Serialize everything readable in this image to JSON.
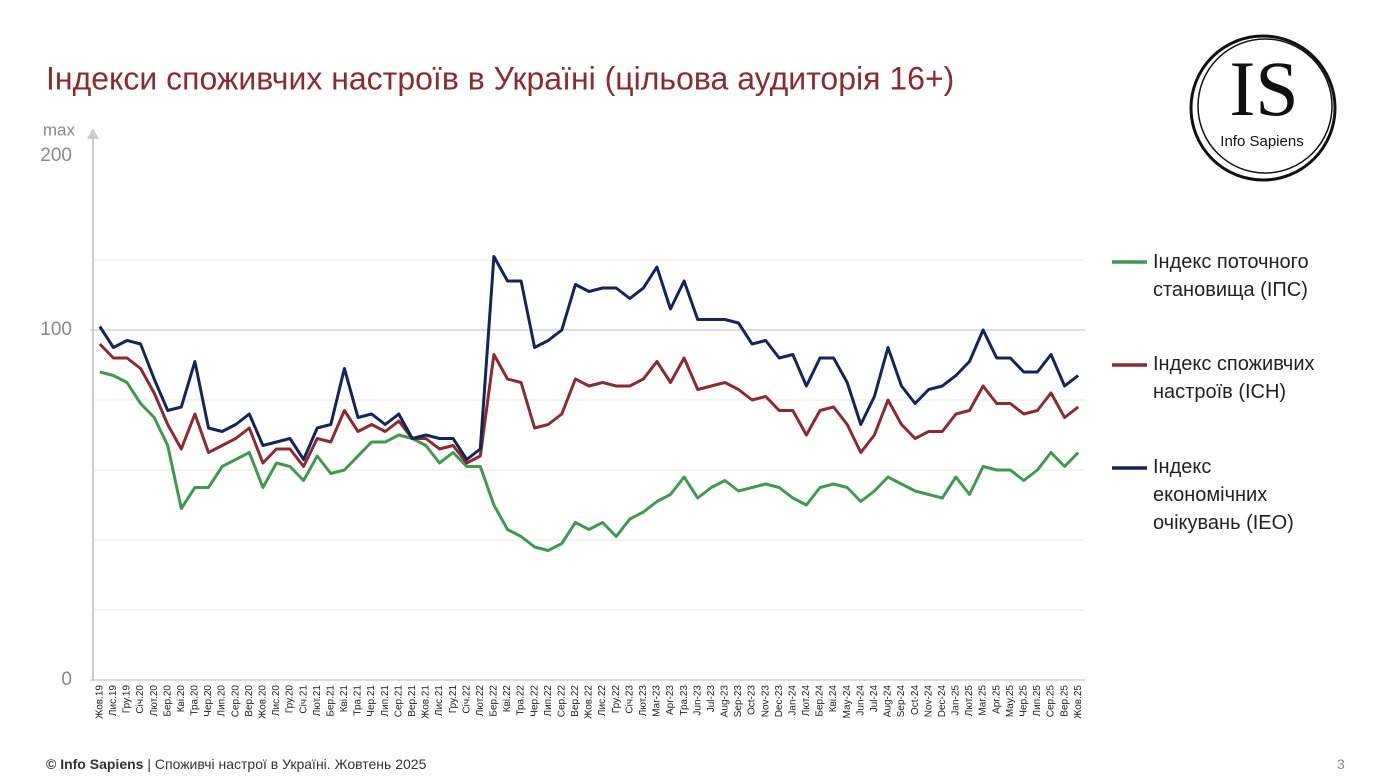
{
  "chart_data": {
    "type": "line",
    "title": "Індекси споживчих настроїв в Україні (цільова аудиторія 16+)",
    "y_axis_top_labels": [
      "max",
      "200"
    ],
    "categories": [
      "Жов.19",
      "Лис.19",
      "Гру.19",
      "Січ.20",
      "Лют.20",
      "Бер.20",
      "Кві.20",
      "Тра.20",
      "Чер.20",
      "Лип.20",
      "Сер.20",
      "Вер.20",
      "Жов.20",
      "Лис.20",
      "Гру.20",
      "Січ.21",
      "Лют.21",
      "Бер.21",
      "Кві.21",
      "Тра.21",
      "Чер.21",
      "Лип.21",
      "Сер.21",
      "Вер.21",
      "Жов.21",
      "Лис.21",
      "Гру.21",
      "Січ.22",
      "Лют.22",
      "Бер.22",
      "Кві.22",
      "Тра.22",
      "Чер.22",
      "Лип.22",
      "Сер.22",
      "Вер.22",
      "Жов.22",
      "Лис.22",
      "Гру.22",
      "Січ.23",
      "Лют.23",
      "Mar-23",
      "Apr-23",
      "Тра.23",
      "Jun-23",
      "Jul-23",
      "Aug-23",
      "Sep-23",
      "Oct-23",
      "Nov-23",
      "Dec-23",
      "Jan-24",
      "Лют.24",
      "Бер.24",
      "Кві.24",
      "May-24",
      "Jun-24",
      "Jul-24",
      "Aug-24",
      "Sep-24",
      "Oct-24",
      "Nov-24",
      "Dec-24",
      "Jan-25",
      "Лют.25",
      "Mar.25",
      "Apr.25",
      "May.25",
      "Чер.25",
      "Лип.25",
      "Сер.25",
      "Вер.25",
      "Жов.25"
    ],
    "series": [
      {
        "name": "Індекс поточного становища (ІПС)",
        "color": "#3f9a4f",
        "values": [
          88,
          87,
          85,
          79,
          75,
          67,
          49,
          55,
          55,
          61,
          63,
          65,
          55,
          62,
          61,
          57,
          64,
          59,
          60,
          64,
          68,
          68,
          70,
          69,
          67,
          62,
          65,
          61,
          61,
          50,
          43,
          41,
          38,
          37,
          39,
          45,
          43,
          45,
          41,
          46,
          48,
          51,
          53,
          58,
          52,
          55,
          57,
          54,
          55,
          56,
          55,
          52,
          50,
          55,
          56,
          55,
          51,
          54,
          58,
          56,
          54,
          53,
          52,
          58,
          53,
          61,
          60,
          60,
          57,
          60,
          65,
          61,
          65
        ]
      },
      {
        "name": "Індекс споживчих настроїв (ІСН)",
        "color": "#8b2a2f",
        "values": [
          96,
          92,
          92,
          89,
          82,
          73,
          66,
          76,
          65,
          67,
          69,
          72,
          62,
          66,
          66,
          61,
          69,
          68,
          77,
          71,
          73,
          71,
          74,
          69,
          69,
          66,
          67,
          62,
          64,
          93,
          86,
          85,
          72,
          73,
          76,
          86,
          84,
          85,
          84,
          84,
          86,
          91,
          85,
          92,
          83,
          84,
          85,
          83,
          80,
          81,
          77,
          77,
          70,
          77,
          78,
          73,
          65,
          70,
          80,
          73,
          69,
          71,
          71,
          76,
          77,
          84,
          79,
          79,
          76,
          77,
          82,
          75,
          78
        ]
      },
      {
        "name": "Індекс економічних очікувань (ІЕО)",
        "color": "#12265c",
        "values": [
          101,
          95,
          97,
          96,
          86,
          77,
          78,
          91,
          72,
          71,
          73,
          76,
          67,
          68,
          69,
          63,
          72,
          73,
          89,
          75,
          76,
          73,
          76,
          69,
          70,
          69,
          69,
          63,
          66,
          121,
          114,
          114,
          95,
          97,
          100,
          113,
          111,
          112,
          112,
          109,
          112,
          118,
          106,
          114,
          103,
          103,
          103,
          102,
          96,
          97,
          92,
          93,
          84,
          92,
          92,
          85,
          73,
          81,
          95,
          84,
          79,
          83,
          84,
          87,
          91,
          100,
          92,
          92,
          88,
          88,
          93,
          84,
          87
        ]
      }
    ],
    "ylim": [
      0,
      150
    ],
    "yticks": [
      0,
      100
    ],
    "ygrid": [
      20,
      40,
      60,
      80,
      100,
      120
    ],
    "legend": "right"
  },
  "logo": {
    "mark": "IS",
    "name": "Info Sapiens"
  },
  "footer": {
    "brand": "© Info Sapiens",
    "separator": "|",
    "text": "Споживчі настрої в Україні. Жовтень 2025"
  },
  "page_number": "3"
}
